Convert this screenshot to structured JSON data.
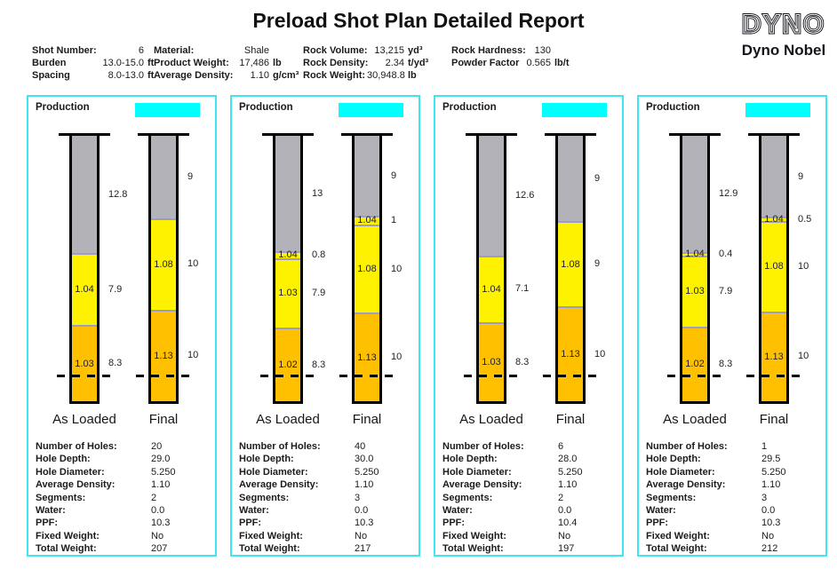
{
  "title": "Preload Shot Plan Detailed Report",
  "logo": {
    "brand": "DYNO",
    "name": "Dyno Nobel"
  },
  "colors": {
    "accent_cyan": "#00ffff",
    "panel_border": "#3ee7f0",
    "stemming_gray": "#b2b2b8",
    "product_yellow": "#fff200",
    "product_orange": "#ffc000",
    "separator_lavender": "#9c9cc8"
  },
  "header": {
    "columns": [
      {
        "rows": [
          {
            "label": "Shot Number:",
            "value": "6",
            "unit": ""
          },
          {
            "label": "Burden",
            "value": "13.0-15.0",
            "unit": "ft"
          },
          {
            "label": "Spacing",
            "value": "8.0-13.0",
            "unit": "ft"
          }
        ]
      },
      {
        "rows": [
          {
            "label": "Material:",
            "value": "Shale",
            "unit": ""
          },
          {
            "label": "Product Weight:",
            "value": "17,486",
            "unit": "lb"
          },
          {
            "label": "Average Density:",
            "value": "1.10",
            "unit": "g/cm³"
          }
        ]
      },
      {
        "rows": [
          {
            "label": "Rock Volume:",
            "value": "13,215",
            "unit": "yd³"
          },
          {
            "label": "Rock Density:",
            "value": "2.34",
            "unit": "t/yd³"
          },
          {
            "label": "Rock Weight:",
            "value": "30,948.8",
            "unit": "lb"
          }
        ]
      },
      {
        "rows": [
          {
            "label": "Rock Hardness:",
            "value": "130",
            "unit": ""
          },
          {
            "label": "Powder Factor",
            "value": "0.565",
            "unit": "lb/t"
          }
        ]
      }
    ]
  },
  "panels": [
    {
      "group_label": "Production",
      "holes": [
        {
          "name": "As Loaded",
          "depth": 29.0,
          "segments": [
            {
              "color": "stemming",
              "len": 12.8,
              "len_label": "12.8",
              "density": ""
            },
            {
              "color": "yellow",
              "len": 7.9,
              "len_label": "7.9",
              "density": "1.04"
            },
            {
              "color": "orange",
              "len": 8.3,
              "len_label": "8.3",
              "density": "1.03"
            }
          ]
        },
        {
          "name": "Final",
          "depth": 29.0,
          "segments": [
            {
              "color": "stemming",
              "len": 9,
              "len_label": "9",
              "density": ""
            },
            {
              "color": "yellow",
              "len": 10,
              "len_label": "10",
              "density": "1.08"
            },
            {
              "color": "orange",
              "len": 10,
              "len_label": "10",
              "density": "1.13"
            }
          ]
        }
      ],
      "details": [
        {
          "label": "Number of Holes:",
          "value": "20"
        },
        {
          "label": "Hole Depth:",
          "value": "29.0"
        },
        {
          "label": "Hole Diameter:",
          "value": "5.250"
        },
        {
          "label": "Average Density:",
          "value": "1.10"
        },
        {
          "label": "Segments:",
          "value": "2"
        },
        {
          "label": "Water:",
          "value": "0.0"
        },
        {
          "label": "PPF:",
          "value": "10.3"
        },
        {
          "label": "Fixed Weight:",
          "value": "No"
        },
        {
          "label": "Total Weight:",
          "value": "207"
        }
      ]
    },
    {
      "group_label": "Production",
      "holes": [
        {
          "name": "As Loaded",
          "depth": 30.0,
          "segments": [
            {
              "color": "stemming",
              "len": 13,
              "len_label": "13",
              "density": ""
            },
            {
              "color": "yellow",
              "len": 0.8,
              "len_label": "0.8",
              "density": "1.04"
            },
            {
              "color": "yellow",
              "len": 7.9,
              "len_label": "7.9",
              "density": "1.03"
            },
            {
              "color": "orange",
              "len": 8.3,
              "len_label": "8.3",
              "density": "1.02"
            }
          ]
        },
        {
          "name": "Final",
          "depth": 30.0,
          "segments": [
            {
              "color": "stemming",
              "len": 9,
              "len_label": "9",
              "density": ""
            },
            {
              "color": "yellow",
              "len": 1,
              "len_label": "1",
              "density": "1.04"
            },
            {
              "color": "yellow",
              "len": 10,
              "len_label": "10",
              "density": "1.08"
            },
            {
              "color": "orange",
              "len": 10,
              "len_label": "10",
              "density": "1.13"
            }
          ]
        }
      ],
      "details": [
        {
          "label": "Number of Holes:",
          "value": "40"
        },
        {
          "label": "Hole Depth:",
          "value": "30.0"
        },
        {
          "label": "Hole Diameter:",
          "value": "5.250"
        },
        {
          "label": "Average Density:",
          "value": "1.10"
        },
        {
          "label": "Segments:",
          "value": "3"
        },
        {
          "label": "Water:",
          "value": "0.0"
        },
        {
          "label": "PPF:",
          "value": "10.3"
        },
        {
          "label": "Fixed Weight:",
          "value": "No"
        },
        {
          "label": "Total Weight:",
          "value": "217"
        }
      ]
    },
    {
      "group_label": "Production",
      "holes": [
        {
          "name": "As Loaded",
          "depth": 28.0,
          "segments": [
            {
              "color": "stemming",
              "len": 12.6,
              "len_label": "12.6",
              "density": ""
            },
            {
              "color": "yellow",
              "len": 7.1,
              "len_label": "7.1",
              "density": "1.04"
            },
            {
              "color": "orange",
              "len": 8.3,
              "len_label": "8.3",
              "density": "1.03"
            }
          ]
        },
        {
          "name": "Final",
          "depth": 28.0,
          "segments": [
            {
              "color": "stemming",
              "len": 9,
              "len_label": "9",
              "density": ""
            },
            {
              "color": "yellow",
              "len": 9,
              "len_label": "9",
              "density": "1.08"
            },
            {
              "color": "orange",
              "len": 10,
              "len_label": "10",
              "density": "1.13"
            }
          ]
        }
      ],
      "details": [
        {
          "label": "Number of Holes:",
          "value": "6"
        },
        {
          "label": "Hole Depth:",
          "value": "28.0"
        },
        {
          "label": "Hole Diameter:",
          "value": "5.250"
        },
        {
          "label": "Average Density:",
          "value": "1.10"
        },
        {
          "label": "Segments:",
          "value": "2"
        },
        {
          "label": "Water:",
          "value": "0.0"
        },
        {
          "label": "PPF:",
          "value": "10.4"
        },
        {
          "label": "Fixed Weight:",
          "value": "No"
        },
        {
          "label": "Total Weight:",
          "value": "197"
        }
      ]
    },
    {
      "group_label": "Production",
      "holes": [
        {
          "name": "As Loaded",
          "depth": 29.5,
          "segments": [
            {
              "color": "stemming",
              "len": 12.9,
              "len_label": "12.9",
              "density": ""
            },
            {
              "color": "yellow",
              "len": 0.4,
              "len_label": "0.4",
              "density": "1.04"
            },
            {
              "color": "yellow",
              "len": 7.9,
              "len_label": "7.9",
              "density": "1.03"
            },
            {
              "color": "orange",
              "len": 8.3,
              "len_label": "8.3",
              "density": "1.02"
            }
          ]
        },
        {
          "name": "Final",
          "depth": 29.5,
          "segments": [
            {
              "color": "stemming",
              "len": 9,
              "len_label": "9",
              "density": ""
            },
            {
              "color": "yellow",
              "len": 0.5,
              "len_label": "0.5",
              "density": "1.04"
            },
            {
              "color": "yellow",
              "len": 10,
              "len_label": "10",
              "density": "1.08"
            },
            {
              "color": "orange",
              "len": 10,
              "len_label": "10",
              "density": "1.13"
            }
          ]
        }
      ],
      "details": [
        {
          "label": "Number of Holes:",
          "value": "1"
        },
        {
          "label": "Hole Depth:",
          "value": "29.5"
        },
        {
          "label": "Hole Diameter:",
          "value": "5.250"
        },
        {
          "label": "Average Density:",
          "value": "1.10"
        },
        {
          "label": "Segments:",
          "value": "3"
        },
        {
          "label": "Water:",
          "value": "0.0"
        },
        {
          "label": "PPF:",
          "value": "10.3"
        },
        {
          "label": "Fixed Weight:",
          "value": "No"
        },
        {
          "label": "Total Weight:",
          "value": "212"
        }
      ]
    }
  ]
}
